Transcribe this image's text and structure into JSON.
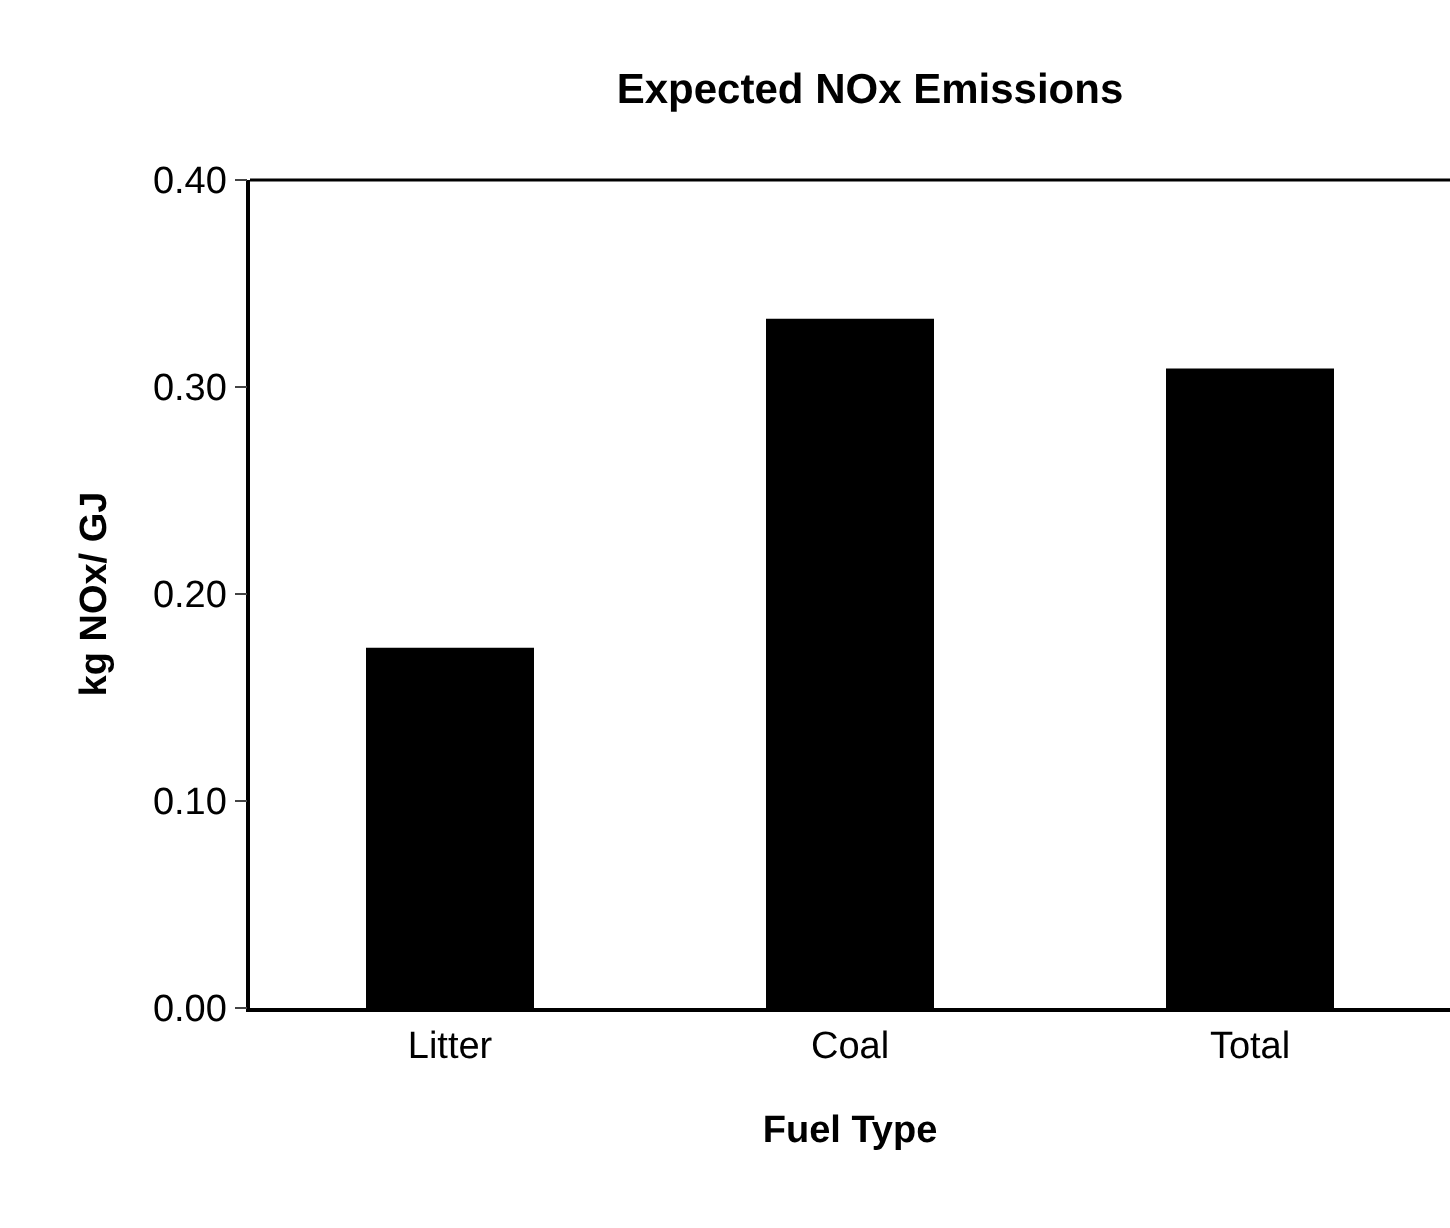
{
  "chart_data": {
    "type": "bar",
    "title": "Expected NOx Emissions",
    "xlabel": "Fuel Type",
    "ylabel": "kg NOx/ GJ",
    "categories": [
      "Litter",
      "Coal",
      "Total"
    ],
    "values": [
      0.174,
      0.333,
      0.309
    ],
    "color": "#000000",
    "ylim": [
      0,
      0.4
    ],
    "yticks": [
      {
        "value": 0,
        "label": "0.00"
      },
      {
        "value": 0.1,
        "label": "0.10"
      },
      {
        "value": 0.2,
        "label": "0.20"
      },
      {
        "value": 0.3,
        "label": "0.30"
      },
      {
        "value": 0.4,
        "label": "0.40"
      }
    ],
    "grid": false
  }
}
